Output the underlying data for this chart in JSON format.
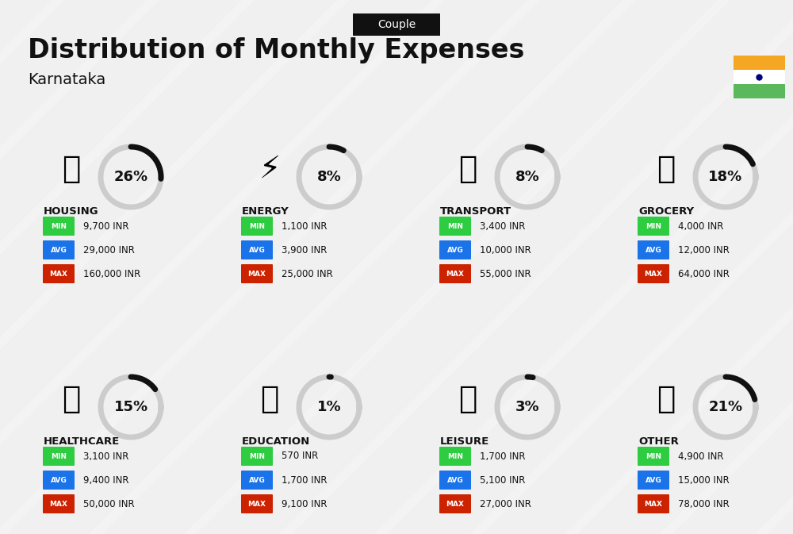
{
  "title": "Distribution of Monthly Expenses",
  "subtitle": "Karnataka",
  "badge": "Couple",
  "background_color": "#f0f0f0",
  "categories": [
    {
      "name": "HOUSING",
      "percent": 26,
      "min_val": "9,700 INR",
      "avg_val": "29,000 INR",
      "max_val": "160,000 INR",
      "emoji": "🏢",
      "col": 0,
      "row": 0
    },
    {
      "name": "ENERGY",
      "percent": 8,
      "min_val": "1,100 INR",
      "avg_val": "3,900 INR",
      "max_val": "25,000 INR",
      "emoji": "⚡",
      "col": 1,
      "row": 0
    },
    {
      "name": "TRANSPORT",
      "percent": 8,
      "min_val": "3,400 INR",
      "avg_val": "10,000 INR",
      "max_val": "55,000 INR",
      "emoji": "🚌",
      "col": 2,
      "row": 0
    },
    {
      "name": "GROCERY",
      "percent": 18,
      "min_val": "4,000 INR",
      "avg_val": "12,000 INR",
      "max_val": "64,000 INR",
      "emoji": "🛒",
      "col": 3,
      "row": 0
    },
    {
      "name": "HEALTHCARE",
      "percent": 15,
      "min_val": "3,100 INR",
      "avg_val": "9,400 INR",
      "max_val": "50,000 INR",
      "emoji": "💗",
      "col": 0,
      "row": 1
    },
    {
      "name": "EDUCATION",
      "percent": 1,
      "min_val": "570 INR",
      "avg_val": "1,700 INR",
      "max_val": "9,100 INR",
      "emoji": "🎓",
      "col": 1,
      "row": 1
    },
    {
      "name": "LEISURE",
      "percent": 3,
      "min_val": "1,700 INR",
      "avg_val": "5,100 INR",
      "max_val": "27,000 INR",
      "emoji": "🛍",
      "col": 2,
      "row": 1
    },
    {
      "name": "OTHER",
      "percent": 21,
      "min_val": "4,900 INR",
      "avg_val": "15,000 INR",
      "max_val": "78,000 INR",
      "emoji": "💰",
      "col": 3,
      "row": 1
    }
  ],
  "color_min": "#2ecc40",
  "color_avg": "#1a73e8",
  "color_max": "#cc2200",
  "color_circle_bg": "#cccccc",
  "color_circle_fg": "#111111",
  "india_orange": "#f5a623",
  "india_green": "#5cb85c",
  "india_white": "#ffffff"
}
